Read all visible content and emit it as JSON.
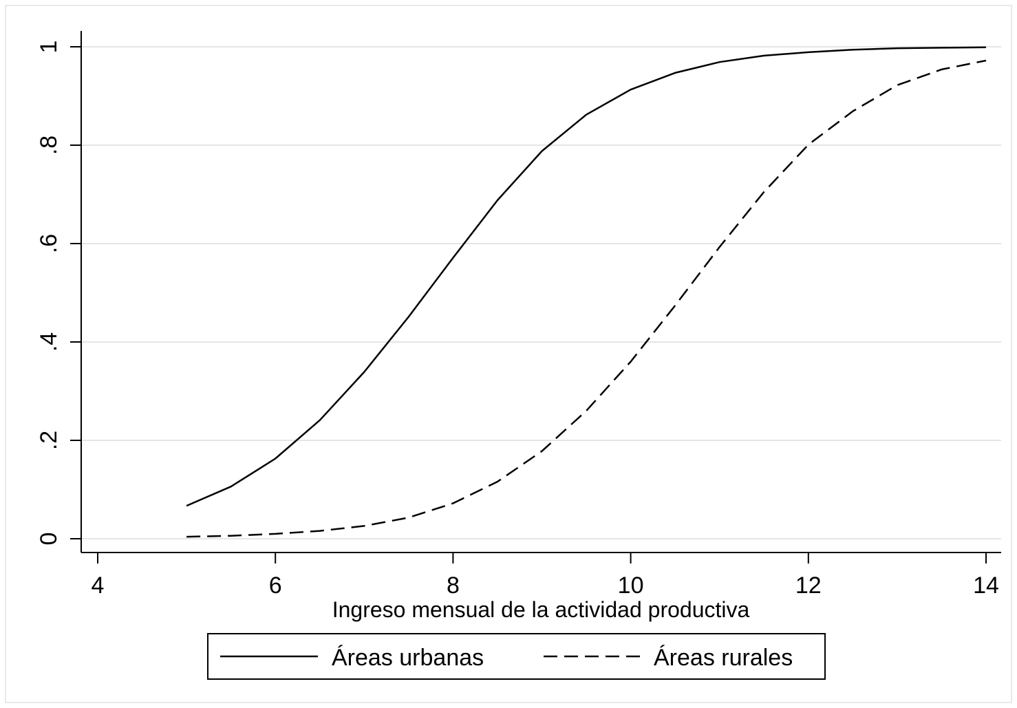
{
  "chart_data": {
    "type": "line",
    "title": "",
    "xlabel": "Ingreso mensual de la actividad productiva",
    "ylabel": "",
    "xlim": [
      4,
      14
    ],
    "ylim": [
      0,
      1
    ],
    "x_ticks": [
      4,
      6,
      8,
      10,
      12,
      14
    ],
    "x_tick_labels": [
      "4",
      "6",
      "8",
      "10",
      "12",
      "14"
    ],
    "y_ticks": [
      0,
      0.2,
      0.4,
      0.6,
      0.8,
      1
    ],
    "y_tick_labels": [
      "0",
      ".2",
      ".4",
      ".6",
      ".8",
      "1"
    ],
    "grid": true,
    "legend_position": "bottom",
    "x": [
      5,
      5.5,
      6,
      6.5,
      7,
      7.5,
      8,
      8.5,
      9,
      9.5,
      10,
      10.5,
      11,
      11.5,
      12,
      12.5,
      13,
      13.5,
      14
    ],
    "series": [
      {
        "name": "Áreas urbanas",
        "style": "solid",
        "color": "#000000",
        "values": [
          0.067,
          0.106,
          0.163,
          0.241,
          0.339,
          0.451,
          0.571,
          0.688,
          0.788,
          0.862,
          0.913,
          0.947,
          0.969,
          0.982,
          0.989,
          0.994,
          0.997,
          0.998,
          0.999
        ]
      },
      {
        "name": "Áreas rurales",
        "style": "dashed",
        "color": "#000000",
        "values": [
          0.004,
          0.006,
          0.01,
          0.016,
          0.026,
          0.043,
          0.072,
          0.116,
          0.178,
          0.26,
          0.36,
          0.474,
          0.593,
          0.705,
          0.801,
          0.869,
          0.922,
          0.954,
          0.972
        ]
      }
    ]
  }
}
